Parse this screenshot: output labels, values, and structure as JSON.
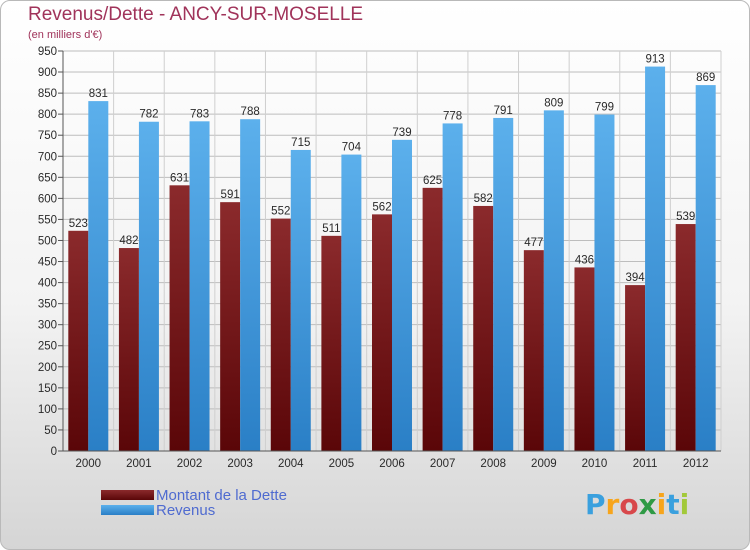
{
  "chart_data": {
    "type": "bar",
    "title": "Revenus/Dette - ANCY-SUR-MOSELLE",
    "subtitle": "(en milliers d'€)",
    "categories": [
      "2000",
      "2001",
      "2002",
      "2003",
      "2004",
      "2005",
      "2006",
      "2007",
      "2008",
      "2009",
      "2010",
      "2011",
      "2012"
    ],
    "series": [
      {
        "name": "Montant de la Dette",
        "color": "#7a1a1c",
        "values": [
          523,
          482,
          631,
          591,
          552,
          511,
          562,
          625,
          582,
          477,
          436,
          394,
          539
        ]
      },
      {
        "name": "Revenus",
        "color": "#3f9be3",
        "values": [
          831,
          782,
          783,
          788,
          715,
          704,
          739,
          778,
          791,
          809,
          799,
          913,
          869
        ]
      }
    ],
    "ylim": [
      0,
      950
    ],
    "ystep": 50,
    "grid": true,
    "legend": "bottom-left"
  },
  "legend": {
    "debt_label": "Montant de la Dette",
    "revenue_label": "Revenus"
  },
  "logo": {
    "letters": [
      "P",
      "r",
      "o",
      "x",
      "i",
      "t",
      "i"
    ],
    "colors": [
      "#3aa0de",
      "#f7a51c",
      "#d8484b",
      "#2f9a45",
      "#f7a51c",
      "#3aa0de",
      "#a2c93a"
    ]
  }
}
